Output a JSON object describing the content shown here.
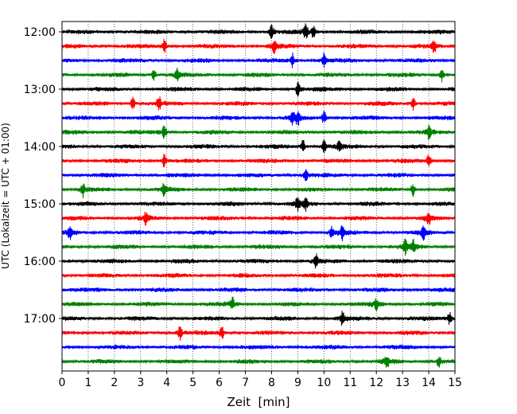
{
  "chart_data": {
    "type": "line",
    "title": "",
    "xlabel": "Zeit  [min]",
    "ylabel": "UTC (Lokalzeit = UTC + 01:00)",
    "xlim": [
      0,
      15
    ],
    "x_ticks": [
      "0",
      "1",
      "2",
      "3",
      "4",
      "5",
      "6",
      "7",
      "8",
      "9",
      "10",
      "11",
      "12",
      "13",
      "14",
      "15"
    ],
    "y_tick_labels": [
      "12:00",
      "13:00",
      "14:00",
      "15:00",
      "16:00",
      "17:00"
    ],
    "grid": "vertical dotted at each minute",
    "colors": [
      "#000000",
      "#ff0000",
      "#0000ff",
      "#008000"
    ],
    "traces": [
      {
        "start": "12:00",
        "color": "#000000",
        "events": [
          8.0,
          9.3,
          9.6
        ]
      },
      {
        "start": "12:15",
        "color": "#ff0000",
        "events": [
          3.9,
          8.1,
          14.2
        ]
      },
      {
        "start": "12:30",
        "color": "#0000ff",
        "events": [
          8.8,
          10.0
        ]
      },
      {
        "start": "12:45",
        "color": "#008000",
        "events": [
          3.5,
          4.4,
          14.5
        ]
      },
      {
        "start": "13:00",
        "color": "#000000",
        "events": [
          9.0
        ]
      },
      {
        "start": "13:15",
        "color": "#ff0000",
        "events": [
          2.7,
          3.7,
          13.4
        ]
      },
      {
        "start": "13:30",
        "color": "#0000ff",
        "events": [
          8.8,
          9.0,
          10.0
        ]
      },
      {
        "start": "13:45",
        "color": "#008000",
        "events": [
          3.9,
          14.0
        ]
      },
      {
        "start": "14:00",
        "color": "#000000",
        "events": [
          9.2,
          10.0,
          10.6
        ]
      },
      {
        "start": "14:15",
        "color": "#ff0000",
        "events": [
          3.9,
          14.0
        ]
      },
      {
        "start": "14:30",
        "color": "#0000ff",
        "events": [
          9.3
        ]
      },
      {
        "start": "14:45",
        "color": "#008000",
        "events": [
          0.8,
          3.9,
          13.4
        ]
      },
      {
        "start": "15:00",
        "color": "#000000",
        "events": [
          9.0,
          9.3
        ]
      },
      {
        "start": "15:15",
        "color": "#ff0000",
        "events": [
          3.2,
          14.0
        ]
      },
      {
        "start": "15:30",
        "color": "#0000ff",
        "events": [
          0.3,
          10.3,
          10.7,
          13.8
        ]
      },
      {
        "start": "15:45",
        "color": "#008000",
        "events": [
          13.1,
          13.4
        ]
      },
      {
        "start": "16:00",
        "color": "#000000",
        "events": [
          9.7
        ]
      },
      {
        "start": "16:15",
        "color": "#ff0000",
        "events": []
      },
      {
        "start": "16:30",
        "color": "#0000ff",
        "events": []
      },
      {
        "start": "16:45",
        "color": "#008000",
        "events": [
          6.5,
          12.0
        ]
      },
      {
        "start": "17:00",
        "color": "#000000",
        "events": [
          10.7,
          14.8
        ]
      },
      {
        "start": "17:15",
        "color": "#ff0000",
        "events": [
          4.5,
          6.1
        ]
      },
      {
        "start": "17:30",
        "color": "#0000ff",
        "events": []
      },
      {
        "start": "17:45",
        "color": "#008000",
        "events": [
          12.4,
          14.4
        ]
      }
    ]
  }
}
